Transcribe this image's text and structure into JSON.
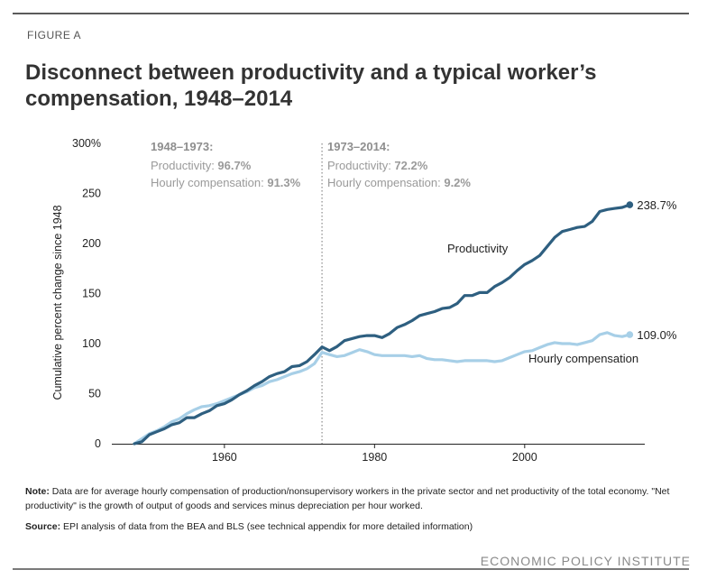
{
  "figure_label": "FIGURE A",
  "title": "Disconnect between productivity and a typical worker’s compensation, 1948–2014",
  "note_label": "Note:",
  "note_text": " Data are for average hourly compensation of production/nonsupervisory workers in the private sector and net productivity of the total economy. \"Net productivity\" is the growth of output of goods and services minus depreciation per hour worked.",
  "source_label": "Source:",
  "source_text": " EPI analysis of data from the BEA and BLS (see technical appendix for more detailed information)",
  "brand": "ECONOMIC POLICY INSTITUTE",
  "chart_data": {
    "type": "line",
    "ylabel": "Cumulative percent change since 1948",
    "ylim": [
      0,
      300
    ],
    "xlim": [
      1945,
      2016
    ],
    "yticks": [
      "0",
      "50",
      "100",
      "150",
      "200",
      "250",
      "300%"
    ],
    "ytick_values": [
      0,
      50,
      100,
      150,
      200,
      250,
      300
    ],
    "xticks": [
      "1960",
      "1980",
      "2000"
    ],
    "xtick_values": [
      1960,
      1980,
      2000
    ],
    "divider_year": 1973,
    "annotations": [
      {
        "heading": "1948–1973:",
        "lines": [
          {
            "label": "Productivity: ",
            "value": "96.7%"
          },
          {
            "label": "Hourly compensation: ",
            "value": "91.3%"
          }
        ]
      },
      {
        "heading": "1973–2014:",
        "lines": [
          {
            "label": "Productivity: ",
            "value": "72.2%"
          },
          {
            "label": "Hourly compensation: ",
            "value": "9.2%"
          }
        ]
      }
    ],
    "series": [
      {
        "name": "Productivity",
        "end_label": "238.7%",
        "color": "#2e5f80",
        "x": [
          1948,
          1949,
          1950,
          1951,
          1952,
          1953,
          1954,
          1955,
          1956,
          1957,
          1958,
          1959,
          1960,
          1961,
          1962,
          1963,
          1964,
          1965,
          1966,
          1967,
          1968,
          1969,
          1970,
          1971,
          1972,
          1973,
          1974,
          1975,
          1976,
          1977,
          1978,
          1979,
          1980,
          1981,
          1982,
          1983,
          1984,
          1985,
          1986,
          1987,
          1988,
          1989,
          1990,
          1991,
          1992,
          1993,
          1994,
          1995,
          1996,
          1997,
          1998,
          1999,
          2000,
          2001,
          2002,
          2003,
          2004,
          2005,
          2006,
          2007,
          2008,
          2009,
          2010,
          2011,
          2012,
          2013,
          2014
        ],
        "values": [
          0,
          2,
          9,
          12,
          15,
          19,
          21,
          26,
          26,
          30,
          33,
          38,
          40,
          44,
          49,
          53,
          58,
          62,
          67,
          70,
          72,
          77,
          78,
          82,
          89,
          96.7,
          93,
          97,
          103,
          105,
          107,
          108,
          108,
          106,
          110,
          116,
          119,
          123,
          128,
          130,
          132,
          135,
          136,
          140,
          148,
          148,
          151,
          151,
          157,
          161,
          166,
          173,
          179,
          183,
          188,
          197,
          206,
          212,
          214,
          216,
          217,
          222,
          232,
          234,
          235,
          236,
          238.7
        ]
      },
      {
        "name": "Hourly compensation",
        "end_label": "109.0%",
        "color": "#a7cfe7",
        "x": [
          1948,
          1949,
          1950,
          1951,
          1952,
          1953,
          1954,
          1955,
          1956,
          1957,
          1958,
          1959,
          1960,
          1961,
          1962,
          1963,
          1964,
          1965,
          1966,
          1967,
          1968,
          1969,
          1970,
          1971,
          1972,
          1973,
          1974,
          1975,
          1976,
          1977,
          1978,
          1979,
          1980,
          1981,
          1982,
          1983,
          1984,
          1985,
          1986,
          1987,
          1988,
          1989,
          1990,
          1991,
          1992,
          1993,
          1994,
          1995,
          1996,
          1997,
          1998,
          1999,
          2000,
          2001,
          2002,
          2003,
          2004,
          2005,
          2006,
          2007,
          2008,
          2009,
          2010,
          2011,
          2012,
          2013,
          2014
        ],
        "values": [
          0,
          5,
          10,
          13,
          17,
          22,
          25,
          30,
          34,
          37,
          38,
          40,
          43,
          46,
          49,
          52,
          56,
          58,
          62,
          64,
          67,
          70,
          72,
          75,
          80,
          91.3,
          89,
          87,
          88,
          91,
          94,
          92,
          89,
          88,
          88,
          88,
          88,
          87,
          88,
          85,
          84,
          84,
          83,
          82,
          83,
          83,
          83,
          83,
          82,
          83,
          86,
          89,
          92,
          93,
          96,
          99,
          101,
          100,
          100,
          99,
          101,
          103,
          109,
          111,
          108,
          107,
          109.0
        ]
      }
    ]
  }
}
